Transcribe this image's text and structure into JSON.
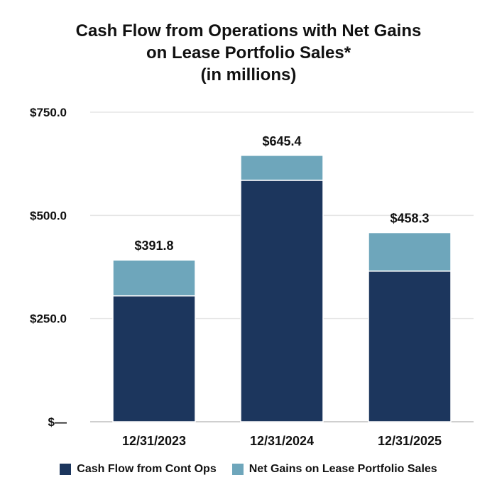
{
  "chart_data": {
    "type": "bar",
    "stacked": true,
    "title_lines": [
      "Cash Flow from Operations with Net Gains",
      "on Lease Portfolio Sales*",
      "(in millions)"
    ],
    "categories": [
      "12/31/2023",
      "12/31/2024",
      "12/31/2025"
    ],
    "series": [
      {
        "name": "Cash Flow from Cont Ops",
        "values": [
          305.0,
          585.0,
          365.0
        ],
        "color": "#1c365d"
      },
      {
        "name": "Net Gains on Lease Portfolio Sales",
        "values": [
          86.8,
          60.4,
          93.3
        ],
        "color": "#6ea6bb"
      }
    ],
    "totals": [
      "$391.8",
      "$645.4",
      "$458.3"
    ],
    "ylim": [
      0,
      750
    ],
    "y_ticks": [
      {
        "value": 0,
        "label": "$—"
      },
      {
        "value": 250,
        "label": "$250.0"
      },
      {
        "value": 500,
        "label": "$500.0"
      },
      {
        "value": 750,
        "label": "$750.0"
      }
    ],
    "grid": true,
    "legend_position": "bottom"
  }
}
